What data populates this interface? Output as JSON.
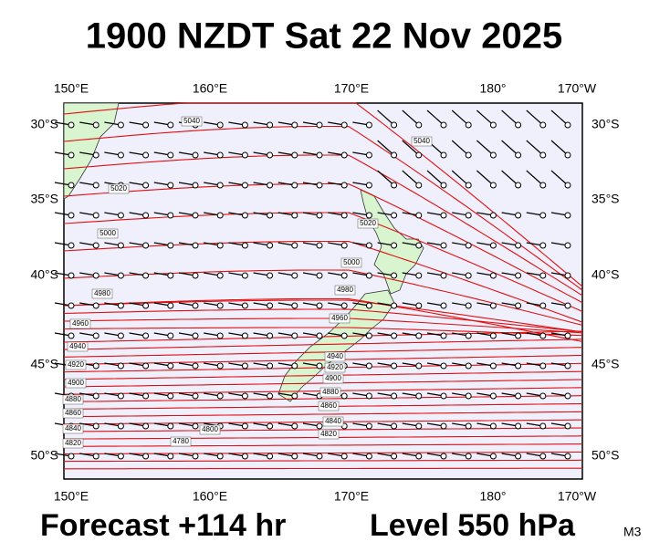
{
  "header": {
    "title": "1900 NZDT Sat 22 Nov 2025"
  },
  "axes": {
    "longitudes": [
      "150°E",
      "160°E",
      "170°E",
      "180°",
      "170°W"
    ],
    "latitudes": [
      "30°S",
      "35°S",
      "40°S",
      "45°S",
      "50°S"
    ]
  },
  "contour_labels": [
    "5040",
    "5040",
    "5020",
    "5000",
    "5020",
    "5000",
    "4980",
    "4980",
    "4960",
    "4960",
    "4940",
    "4940",
    "4920",
    "4920",
    "4900",
    "4900",
    "4880",
    "4880",
    "4860",
    "4860",
    "4840",
    "4840",
    "4820",
    "4820",
    "4800",
    "4780"
  ],
  "footer": {
    "forecast": "Forecast +114 hr",
    "level": "Level 550 hPa",
    "model": "M3"
  }
}
